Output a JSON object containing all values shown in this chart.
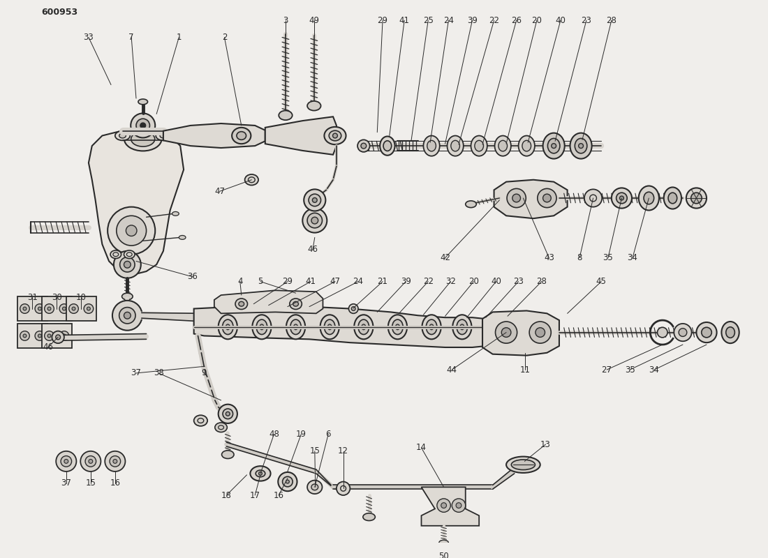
{
  "title": "600953",
  "bg_color": "#f0eeeb",
  "line_color": "#2a2a2a",
  "label_fontsize": 8.5,
  "title_fontsize": 10,
  "figsize": [
    11.0,
    8.0
  ],
  "dpi": 100
}
